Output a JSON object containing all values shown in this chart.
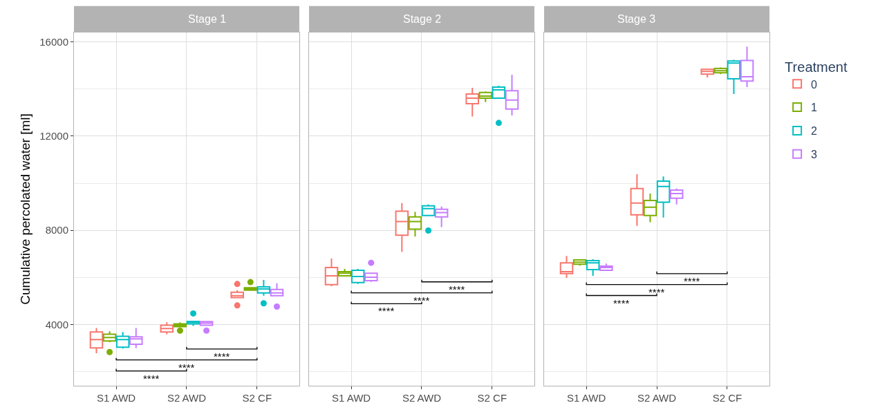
{
  "chart_data": [
    {
      "type": "box",
      "title": "Stage 1",
      "ylabel": "Cumulative percolated water [ml]",
      "categories": [
        "S1 AWD",
        "S2 AWD",
        "S2 CF"
      ],
      "ylim": [
        1400,
        16400
      ],
      "yticks": [
        4000,
        8000,
        12000,
        16000
      ],
      "grid": true,
      "legend": "right",
      "legend_title": "Treatment",
      "annotations": [
        "****",
        "****",
        "****"
      ],
      "series": [
        {
          "name": "0",
          "color": "#f8766d",
          "boxes": [
            {
              "low": 2780,
              "q1": 3010,
              "median": 3360,
              "q3": 3680,
              "high": 3850
            },
            {
              "low": 3590,
              "q1": 3680,
              "median": 3830,
              "q3": 3970,
              "high": 4090
            },
            {
              "low": 5130,
              "q1": 5140,
              "median": 5220,
              "q3": 5370,
              "high": 5460,
              "outliers": [
                5720,
                4810
              ]
            }
          ]
        },
        {
          "name": "1",
          "color": "#7cae00",
          "boxes": [
            {
              "low": 3250,
              "q1": 3300,
              "median": 3450,
              "q3": 3590,
              "high": 3710,
              "outliers": [
                2830
              ]
            },
            {
              "low": 3900,
              "q1": 3910,
              "median": 3970,
              "q3": 4030,
              "high": 4090,
              "outliers": [
                3740
              ]
            },
            {
              "low": 5450,
              "q1": 5460,
              "median": 5520,
              "q3": 5560,
              "high": 5570,
              "outliers": [
                5800
              ]
            }
          ]
        },
        {
          "name": "2",
          "color": "#00bfc4",
          "boxes": [
            {
              "low": 2980,
              "q1": 3040,
              "median": 3360,
              "q3": 3500,
              "high": 3680
            },
            {
              "low": 3940,
              "q1": 4030,
              "median": 4090,
              "q3": 4130,
              "high": 4130,
              "outliers": [
                4470
              ]
            },
            {
              "low": 5220,
              "q1": 5340,
              "median": 5510,
              "q3": 5600,
              "high": 5890,
              "outliers": [
                4900
              ]
            }
          ]
        },
        {
          "name": "3",
          "color": "#c77cff",
          "boxes": [
            {
              "low": 3000,
              "q1": 3160,
              "median": 3390,
              "q3": 3480,
              "high": 3850
            },
            {
              "low": 3960,
              "q1": 3970,
              "median": 4060,
              "q3": 4120,
              "high": 4130,
              "outliers": [
                3740
              ]
            },
            {
              "low": 5200,
              "q1": 5220,
              "median": 5340,
              "q3": 5490,
              "high": 5750,
              "outliers": [
                4760
              ]
            }
          ]
        }
      ]
    },
    {
      "type": "box",
      "title": "Stage 2",
      "categories": [
        "S1 AWD",
        "S2 AWD",
        "S2 CF"
      ],
      "ylim": [
        1400,
        16400
      ],
      "yticks": [
        4000,
        8000,
        12000,
        16000
      ],
      "grid": true,
      "legend": false,
      "tick_labels": "x",
      "annotations": [
        "****",
        "****",
        "****"
      ],
      "series": [
        {
          "color": "#f8766d",
          "boxes": [
            {
              "low": 5630,
              "q1": 5690,
              "median": 6070,
              "q3": 6420,
              "high": 6800
            },
            {
              "low": 7090,
              "q1": 7790,
              "median": 8370,
              "q3": 8810,
              "high": 9160
            },
            {
              "low": 12830,
              "q1": 13380,
              "median": 13610,
              "q3": 13790,
              "high": 14050
            }
          ]
        },
        {
          "color": "#7cae00",
          "boxes": [
            {
              "low": 6060,
              "q1": 6070,
              "median": 6180,
              "q3": 6240,
              "high": 6360
            },
            {
              "low": 7730,
              "q1": 8050,
              "median": 8370,
              "q3": 8570,
              "high": 8780
            },
            {
              "low": 13440,
              "q1": 13610,
              "median": 13700,
              "q3": 13850,
              "high": 13900
            }
          ]
        },
        {
          "color": "#00bfc4",
          "boxes": [
            {
              "low": 5720,
              "q1": 5780,
              "median": 6040,
              "q3": 6300,
              "high": 6360
            },
            {
              "low": 8620,
              "q1": 8630,
              "median": 8920,
              "q3": 9040,
              "high": 9100,
              "outliers": [
                7990
              ]
            },
            {
              "low": 13600,
              "q1": 13610,
              "median": 13960,
              "q3": 14080,
              "high": 14140,
              "outliers": [
                12560
              ]
            }
          ]
        },
        {
          "color": "#c77cff",
          "boxes": [
            {
              "low": 5810,
              "q1": 5860,
              "median": 6010,
              "q3": 6180,
              "high": 6210,
              "outliers": [
                6620
              ]
            },
            {
              "low": 8140,
              "q1": 8570,
              "median": 8750,
              "q3": 8890,
              "high": 9010
            },
            {
              "low": 12880,
              "q1": 13150,
              "median": 13530,
              "q3": 13930,
              "high": 14600
            }
          ]
        }
      ]
    },
    {
      "type": "box",
      "title": "Stage 3",
      "categories": [
        "S1 AWD",
        "S2 AWD",
        "S2 CF"
      ],
      "ylim": [
        1400,
        16400
      ],
      "yticks": [
        4000,
        8000,
        12000,
        16000
      ],
      "grid": true,
      "legend": false,
      "tick_labels": "x",
      "annotations": [
        "****",
        "****",
        "****"
      ],
      "series": [
        {
          "color": "#f8766d",
          "boxes": [
            {
              "low": 5980,
              "q1": 6160,
              "median": 6240,
              "q3": 6620,
              "high": 6910
            },
            {
              "low": 8190,
              "q1": 8660,
              "median": 9160,
              "q3": 9770,
              "high": 10380
            },
            {
              "low": 14490,
              "q1": 14630,
              "median": 14750,
              "q3": 14840,
              "high": 14850
            }
          ]
        },
        {
          "color": "#7cae00",
          "boxes": [
            {
              "low": 6500,
              "q1": 6560,
              "median": 6650,
              "q3": 6740,
              "high": 6740
            },
            {
              "low": 8340,
              "q1": 8630,
              "median": 8980,
              "q3": 9270,
              "high": 9560
            },
            {
              "low": 14630,
              "q1": 14690,
              "median": 14780,
              "q3": 14870,
              "high": 14920
            }
          ]
        },
        {
          "color": "#00bfc4",
          "boxes": [
            {
              "low": 6070,
              "q1": 6330,
              "median": 6620,
              "q3": 6710,
              "high": 6770
            },
            {
              "low": 8540,
              "q1": 9190,
              "median": 9860,
              "q3": 10090,
              "high": 10290
            },
            {
              "low": 13790,
              "q1": 14430,
              "median": 15100,
              "q3": 15190,
              "high": 15240
            }
          ]
        },
        {
          "color": "#c77cff",
          "boxes": [
            {
              "low": 6290,
              "q1": 6300,
              "median": 6420,
              "q3": 6480,
              "high": 6590
            },
            {
              "low": 9100,
              "q1": 9360,
              "median": 9560,
              "q3": 9710,
              "high": 9770
            },
            {
              "low": 14080,
              "q1": 14340,
              "median": 14520,
              "q3": 15210,
              "high": 15800
            }
          ]
        }
      ]
    }
  ]
}
